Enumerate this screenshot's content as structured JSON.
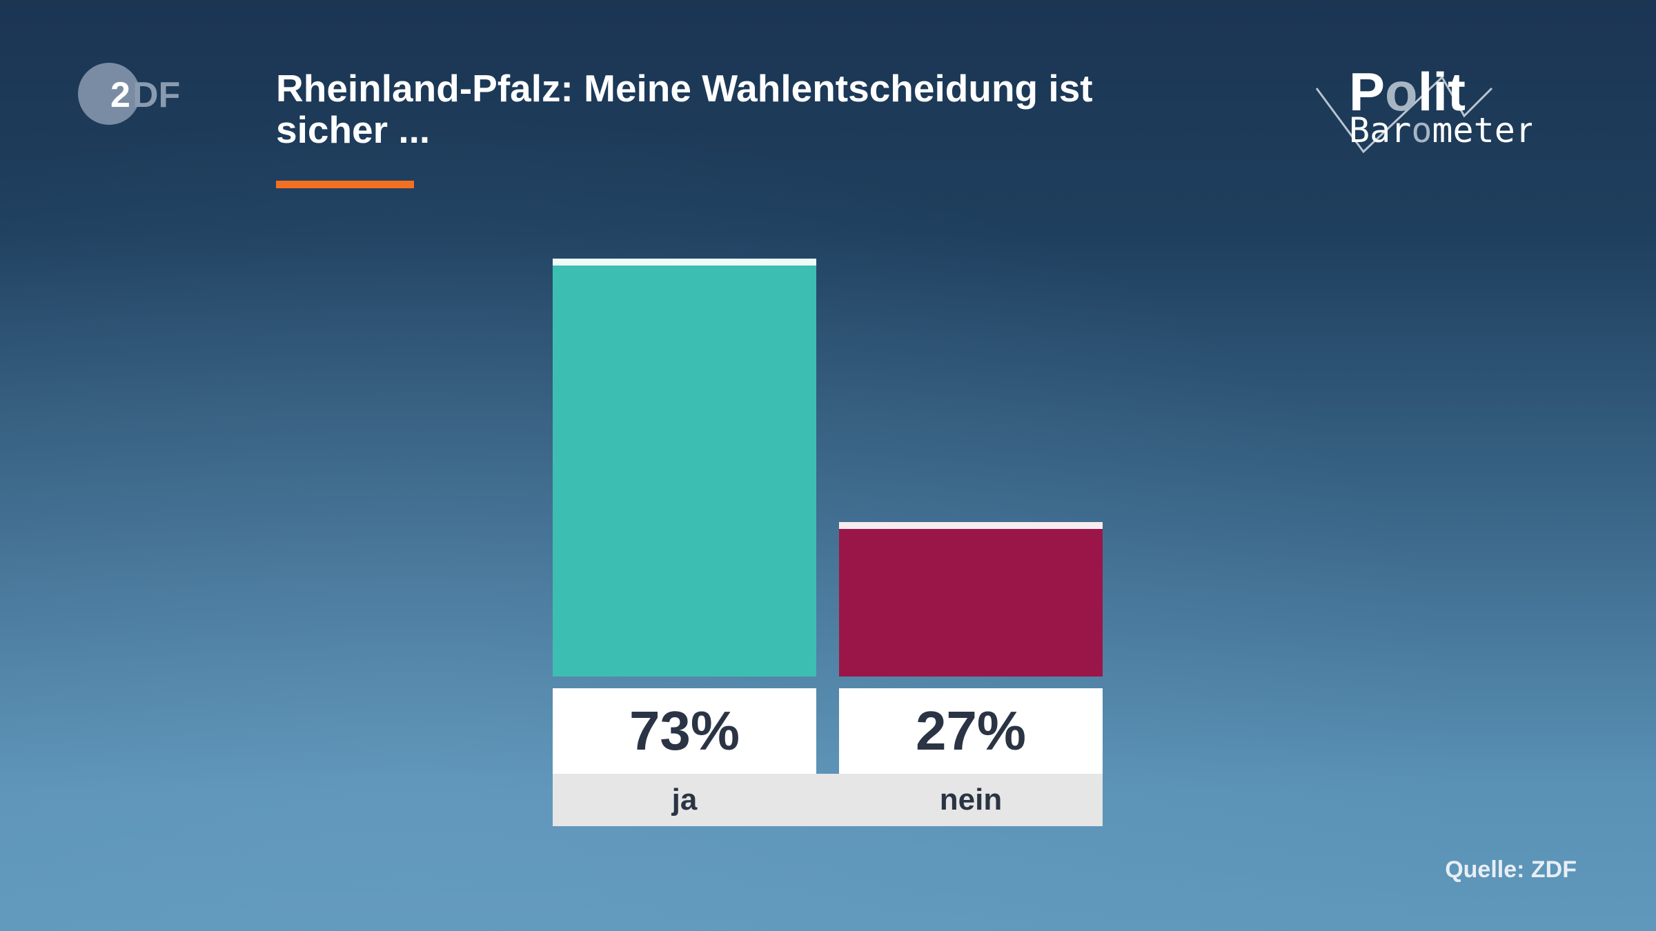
{
  "header": {
    "title": "Rheinland-Pfalz: Meine Wahlentscheidung ist sicher ...",
    "logo_left": "ZDF",
    "logo_right": "Polit Barometer",
    "accent": "#f37021"
  },
  "chart_data": {
    "type": "bar",
    "title": "Rheinland-Pfalz: Meine Wahlentscheidung ist sicher ...",
    "categories": [
      "ja",
      "nein"
    ],
    "values": [
      73,
      27
    ],
    "value_labels": [
      "73%",
      "27%"
    ],
    "colors": [
      "#3cbfb2",
      "#9b1648"
    ],
    "ylim": [
      0,
      100
    ],
    "grid": false
  },
  "footer": {
    "source": "Quelle: ZDF"
  }
}
